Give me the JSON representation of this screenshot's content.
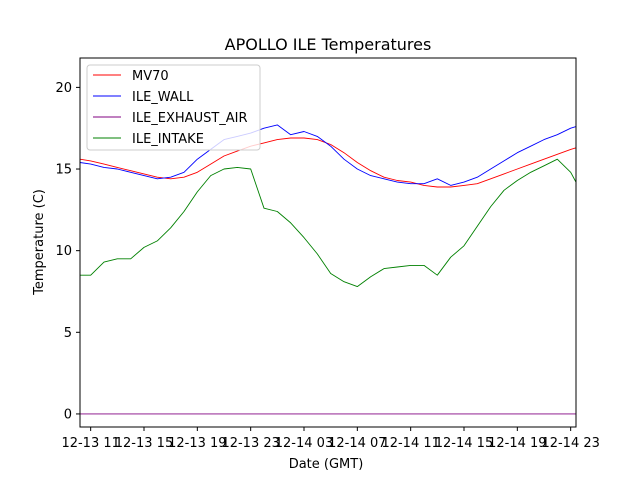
{
  "chart_data": {
    "type": "line",
    "title": "APOLLO ILE Temperatures",
    "xlabel": "Date (GMT)",
    "ylabel": "Temperature (C)",
    "x_unit": "hours since 12-13 11:00 GMT",
    "xlim": [
      -0.8,
      36.4
    ],
    "ylim": [
      -0.8,
      21.8
    ],
    "grid": false,
    "legend_position": "top-left",
    "x_ticks": [
      {
        "value": 0,
        "label": "12-13 11"
      },
      {
        "value": 4,
        "label": "12-13 15"
      },
      {
        "value": 8,
        "label": "12-13 19"
      },
      {
        "value": 12,
        "label": "12-13 23"
      },
      {
        "value": 16,
        "label": "12-14 03"
      },
      {
        "value": 20,
        "label": "12-14 07"
      },
      {
        "value": 24,
        "label": "12-14 11"
      },
      {
        "value": 28,
        "label": "12-14 15"
      },
      {
        "value": 32,
        "label": "12-14 19"
      },
      {
        "value": 36,
        "label": "12-14 23"
      }
    ],
    "y_ticks": [
      {
        "value": 0,
        "label": "0"
      },
      {
        "value": 5,
        "label": "5"
      },
      {
        "value": 10,
        "label": "10"
      },
      {
        "value": 15,
        "label": "15"
      },
      {
        "value": 20,
        "label": "20"
      }
    ],
    "x": [
      -0.8,
      0,
      1,
      2,
      3,
      4,
      5,
      6,
      7,
      8,
      9,
      10,
      11,
      12,
      13,
      14,
      15,
      16,
      17,
      18,
      19,
      20,
      21,
      22,
      23,
      24,
      25,
      26,
      27,
      28,
      29,
      30,
      31,
      32,
      33,
      34,
      35,
      36,
      36.4
    ],
    "series": [
      {
        "name": "MV70",
        "color": "#ff0000",
        "values": [
          15.6,
          15.5,
          15.3,
          15.1,
          14.9,
          14.7,
          14.5,
          14.4,
          14.5,
          14.8,
          15.3,
          15.8,
          16.1,
          16.4,
          16.6,
          16.8,
          16.9,
          16.9,
          16.8,
          16.5,
          16.0,
          15.4,
          14.9,
          14.5,
          14.3,
          14.2,
          14.0,
          13.9,
          13.9,
          14.0,
          14.1,
          14.4,
          14.7,
          15.0,
          15.3,
          15.6,
          15.9,
          16.2,
          16.3
        ]
      },
      {
        "name": "ILE_WALL",
        "color": "#0000ff",
        "values": [
          15.4,
          15.3,
          15.1,
          15.0,
          14.8,
          14.6,
          14.4,
          14.5,
          14.8,
          15.6,
          16.2,
          16.8,
          17.0,
          17.2,
          17.5,
          17.7,
          17.1,
          17.3,
          17.0,
          16.4,
          15.6,
          15.0,
          14.6,
          14.4,
          14.2,
          14.1,
          14.1,
          14.4,
          14.0,
          14.2,
          14.5,
          15.0,
          15.5,
          16.0,
          16.4,
          16.8,
          17.1,
          17.5,
          17.6
        ]
      },
      {
        "name": "ILE_EXHAUST_AIR",
        "color": "#800080",
        "values": [
          0,
          0,
          0,
          0,
          0,
          0,
          0,
          0,
          0,
          0,
          0,
          0,
          0,
          0,
          0,
          0,
          0,
          0,
          0,
          0,
          0,
          0,
          0,
          0,
          0,
          0,
          0,
          0,
          0,
          0,
          0,
          0,
          0,
          0,
          0,
          0,
          0,
          0,
          0
        ]
      },
      {
        "name": "ILE_INTAKE",
        "color": "#008000",
        "values": [
          8.5,
          8.5,
          9.3,
          9.5,
          9.5,
          10.2,
          10.6,
          11.4,
          12.4,
          13.6,
          14.6,
          15.0,
          15.1,
          15.0,
          12.6,
          12.4,
          11.7,
          10.8,
          9.8,
          8.6,
          8.1,
          7.8,
          8.4,
          8.9,
          9.0,
          9.1,
          9.1,
          8.5,
          9.6,
          10.3,
          11.5,
          12.7,
          13.7,
          14.3,
          14.8,
          15.2,
          15.6,
          14.8,
          14.2
        ]
      }
    ]
  }
}
